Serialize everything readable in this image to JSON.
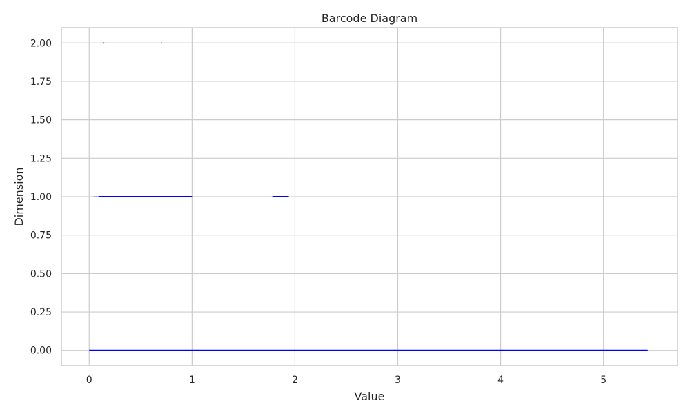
{
  "chart_data": {
    "type": "barcode",
    "title": "Barcode Diagram",
    "xlabel": "Value",
    "ylabel": "Dimension",
    "xlim": [
      -0.27,
      5.72
    ],
    "ylim": [
      -0.1,
      2.1
    ],
    "xticks": [
      0,
      1,
      2,
      3,
      4,
      5
    ],
    "xtick_labels": [
      "0",
      "1",
      "2",
      "3",
      "4",
      "5"
    ],
    "yticks": [
      0,
      0.25,
      0.5,
      0.75,
      1,
      1.25,
      1.5,
      1.75,
      2
    ],
    "ytick_labels": [
      "0.00",
      "0.25",
      "0.50",
      "0.75",
      "1.00",
      "1.25",
      "1.50",
      "1.75",
      "2.00"
    ],
    "grid": true,
    "series": [
      {
        "dimension": 0,
        "intervals": [
          [
            0.0,
            5.43
          ]
        ]
      },
      {
        "dimension": 1,
        "intervals": [
          [
            0.05,
            0.06
          ],
          [
            0.07,
            0.08
          ],
          [
            0.09,
            1.0
          ],
          [
            1.78,
            1.94
          ]
        ]
      },
      {
        "dimension": 2,
        "intervals": [
          [
            0.14,
            0.145
          ],
          [
            0.7,
            0.705
          ]
        ]
      }
    ],
    "colors": {
      "bar": "#0000ff",
      "grid": "#cccccc",
      "spine": "#cccccc",
      "background": "#ffffff",
      "text": "#262626"
    }
  }
}
